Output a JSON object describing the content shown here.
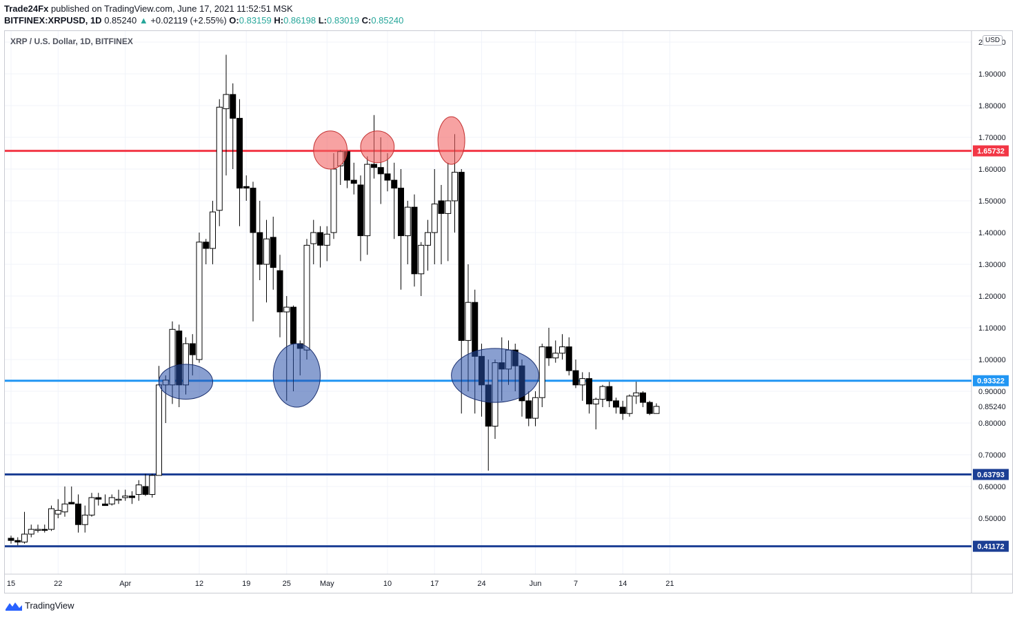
{
  "header": {
    "publisher": "Trade24Fx",
    "published_text": "published on TradingView.com, June 17, 2021 11:52:51 MSK",
    "symbol": "BITFINEX:XRPUSD, 1D",
    "price": "0.85240",
    "change": "+0.02119 (+2.55%)",
    "open_label": "O:",
    "open": "0.83159",
    "high_label": "H:",
    "high": "0.86198",
    "low_label": "L:",
    "low": "0.83019",
    "close_label": "C:",
    "close": "0.85240"
  },
  "chart_title": "XRP / U.S. Dollar, 1D, BITFINEX",
  "currency_button": "USD",
  "footer": {
    "brand": "TradingView"
  },
  "colors": {
    "bull_body": "#ffffff",
    "bear_body": "#000000",
    "wick": "#000000",
    "grid": "#f0f3fa",
    "red_line": "#f23645",
    "blue_line": "#2962ff"
  },
  "chart_data": {
    "type": "candlestick",
    "title": "XRP / U.S. Dollar, 1D, BITFINEX",
    "ylim": [
      0.35,
      2.03
    ],
    "y_ticks": [
      "0.50000",
      "0.60000",
      "0.70000",
      "0.80000",
      "0.90000",
      "1.00000",
      "1.10000",
      "1.20000",
      "1.30000",
      "1.40000",
      "1.50000",
      "1.60000",
      "1.70000",
      "1.80000",
      "1.90000",
      "2.00000"
    ],
    "y_tick_values": [
      0.5,
      0.6,
      0.7,
      0.8,
      0.9,
      1.0,
      1.1,
      1.2,
      1.3,
      1.4,
      1.5,
      1.6,
      1.7,
      1.8,
      1.9,
      2.0
    ],
    "x_ticks": [
      {
        "label": "15",
        "day": 0
      },
      {
        "label": "22",
        "day": 7
      },
      {
        "label": "Apr",
        "day": 17
      },
      {
        "label": "12",
        "day": 28
      },
      {
        "label": "19",
        "day": 35
      },
      {
        "label": "25",
        "day": 41
      },
      {
        "label": "May",
        "day": 47
      },
      {
        "label": "10",
        "day": 56
      },
      {
        "label": "17",
        "day": 63
      },
      {
        "label": "24",
        "day": 70
      },
      {
        "label": "Jun",
        "day": 78
      },
      {
        "label": "7",
        "day": 84
      },
      {
        "label": "14",
        "day": 91
      },
      {
        "label": "21",
        "day": 98
      }
    ],
    "levels": [
      {
        "price": 1.65732,
        "label": "1.65732",
        "color": "#f23645"
      },
      {
        "price": 0.93322,
        "label": "0.93322",
        "color": "#2196f3"
      },
      {
        "price": 0.63793,
        "label": "0.63793",
        "color": "#1c3f94"
      },
      {
        "price": 0.41172,
        "label": "0.41172",
        "color": "#1c3f94"
      }
    ],
    "last_price": {
      "price": 0.8524,
      "label": "0.85240"
    },
    "highlights": [
      {
        "type": "resistance",
        "day": 47.5,
        "price": 1.66,
        "w_days": 2.5,
        "h_price": 0.12
      },
      {
        "type": "resistance",
        "day": 54.5,
        "price": 1.67,
        "w_days": 2.5,
        "h_price": 0.1
      },
      {
        "type": "resistance",
        "day": 65.5,
        "price": 1.69,
        "w_days": 2.0,
        "h_price": 0.15
      },
      {
        "type": "support",
        "day": 26,
        "price": 0.93,
        "w_days": 4.0,
        "h_price": 0.11
      },
      {
        "type": "support",
        "day": 42.5,
        "price": 0.95,
        "w_days": 3.5,
        "h_price": 0.2
      },
      {
        "type": "support",
        "day": 72,
        "price": 0.95,
        "w_days": 6.5,
        "h_price": 0.17
      }
    ],
    "candles": [
      {
        "d": 0,
        "o": 0.437,
        "h": 0.445,
        "l": 0.42,
        "c": 0.43
      },
      {
        "d": 1,
        "o": 0.43,
        "h": 0.44,
        "l": 0.415,
        "c": 0.425
      },
      {
        "d": 2,
        "o": 0.425,
        "h": 0.52,
        "l": 0.42,
        "c": 0.45
      },
      {
        "d": 3,
        "o": 0.45,
        "h": 0.48,
        "l": 0.44,
        "c": 0.465
      },
      {
        "d": 4,
        "o": 0.465,
        "h": 0.48,
        "l": 0.455,
        "c": 0.465
      },
      {
        "d": 5,
        "o": 0.465,
        "h": 0.48,
        "l": 0.455,
        "c": 0.462
      },
      {
        "d": 6,
        "o": 0.465,
        "h": 0.54,
        "l": 0.46,
        "c": 0.53
      },
      {
        "d": 7,
        "o": 0.513,
        "h": 0.56,
        "l": 0.5,
        "c": 0.525
      },
      {
        "d": 8,
        "o": 0.52,
        "h": 0.6,
        "l": 0.505,
        "c": 0.545
      },
      {
        "d": 9,
        "o": 0.55,
        "h": 0.6,
        "l": 0.545,
        "c": 0.545
      },
      {
        "d": 10,
        "o": 0.545,
        "h": 0.575,
        "l": 0.455,
        "c": 0.48
      },
      {
        "d": 11,
        "o": 0.48,
        "h": 0.54,
        "l": 0.455,
        "c": 0.51
      },
      {
        "d": 12,
        "o": 0.51,
        "h": 0.58,
        "l": 0.505,
        "c": 0.565
      },
      {
        "d": 13,
        "o": 0.565,
        "h": 0.58,
        "l": 0.54,
        "c": 0.56
      },
      {
        "d": 14,
        "o": 0.545,
        "h": 0.575,
        "l": 0.54,
        "c": 0.54
      },
      {
        "d": 15,
        "o": 0.545,
        "h": 0.575,
        "l": 0.54,
        "c": 0.565
      },
      {
        "d": 16,
        "o": 0.56,
        "h": 0.59,
        "l": 0.545,
        "c": 0.56
      },
      {
        "d": 17,
        "o": 0.565,
        "h": 0.59,
        "l": 0.555,
        "c": 0.57
      },
      {
        "d": 18,
        "o": 0.57,
        "h": 0.585,
        "l": 0.545,
        "c": 0.565
      },
      {
        "d": 19,
        "o": 0.575,
        "h": 0.62,
        "l": 0.555,
        "c": 0.605
      },
      {
        "d": 20,
        "o": 0.6,
        "h": 0.64,
        "l": 0.57,
        "c": 0.575
      },
      {
        "d": 21,
        "o": 0.575,
        "h": 0.64,
        "l": 0.565,
        "c": 0.635
      },
      {
        "d": 22,
        "o": 0.635,
        "h": 0.98,
        "l": 0.635,
        "c": 0.92
      },
      {
        "d": 23,
        "o": 0.92,
        "h": 0.95,
        "l": 0.8,
        "c": 0.935
      },
      {
        "d": 24,
        "o": 0.92,
        "h": 1.12,
        "l": 0.86,
        "c": 1.095
      },
      {
        "d": 25,
        "o": 1.09,
        "h": 1.11,
        "l": 0.85,
        "c": 0.92
      },
      {
        "d": 26,
        "o": 0.92,
        "h": 1.07,
        "l": 0.89,
        "c": 1.05
      },
      {
        "d": 27,
        "o": 1.05,
        "h": 1.08,
        "l": 0.95,
        "c": 1.015
      },
      {
        "d": 28,
        "o": 1.0,
        "h": 1.4,
        "l": 0.99,
        "c": 1.37
      },
      {
        "d": 29,
        "o": 1.37,
        "h": 1.38,
        "l": 1.3,
        "c": 1.35
      },
      {
        "d": 30,
        "o": 1.35,
        "h": 1.5,
        "l": 1.3,
        "c": 1.465
      },
      {
        "d": 31,
        "o": 1.47,
        "h": 1.82,
        "l": 1.42,
        "c": 1.795
      },
      {
        "d": 32,
        "o": 1.79,
        "h": 1.96,
        "l": 1.58,
        "c": 1.835
      },
      {
        "d": 33,
        "o": 1.835,
        "h": 1.87,
        "l": 1.6,
        "c": 1.76
      },
      {
        "d": 34,
        "o": 1.76,
        "h": 1.82,
        "l": 1.42,
        "c": 1.54
      },
      {
        "d": 35,
        "o": 1.545,
        "h": 1.58,
        "l": 1.5,
        "c": 1.54
      },
      {
        "d": 36,
        "o": 1.54,
        "h": 1.56,
        "l": 1.12,
        "c": 1.4
      },
      {
        "d": 37,
        "o": 1.4,
        "h": 1.5,
        "l": 1.25,
        "c": 1.3
      },
      {
        "d": 38,
        "o": 1.3,
        "h": 1.44,
        "l": 1.18,
        "c": 1.38
      },
      {
        "d": 39,
        "o": 1.385,
        "h": 1.45,
        "l": 1.22,
        "c": 1.29
      },
      {
        "d": 40,
        "o": 1.28,
        "h": 1.33,
        "l": 1.07,
        "c": 1.15
      },
      {
        "d": 41,
        "o": 1.15,
        "h": 1.2,
        "l": 0.87,
        "c": 1.165
      },
      {
        "d": 42,
        "o": 1.165,
        "h": 1.17,
        "l": 0.9,
        "c": 1.05
      },
      {
        "d": 43,
        "o": 1.05,
        "h": 1.06,
        "l": 0.95,
        "c": 1.035
      },
      {
        "d": 44,
        "o": 1.03,
        "h": 1.38,
        "l": 1.0,
        "c": 1.36
      },
      {
        "d": 45,
        "o": 1.365,
        "h": 1.44,
        "l": 1.3,
        "c": 1.4
      },
      {
        "d": 46,
        "o": 1.4,
        "h": 1.42,
        "l": 1.29,
        "c": 1.36
      },
      {
        "d": 47,
        "o": 1.36,
        "h": 1.42,
        "l": 1.31,
        "c": 1.395
      },
      {
        "d": 48,
        "o": 1.4,
        "h": 1.65,
        "l": 1.38,
        "c": 1.6
      },
      {
        "d": 49,
        "o": 1.61,
        "h": 1.66,
        "l": 1.55,
        "c": 1.655
      },
      {
        "d": 50,
        "o": 1.655,
        "h": 1.66,
        "l": 1.54,
        "c": 1.565
      },
      {
        "d": 51,
        "o": 1.565,
        "h": 1.62,
        "l": 1.52,
        "c": 1.555
      },
      {
        "d": 52,
        "o": 1.55,
        "h": 1.58,
        "l": 1.31,
        "c": 1.39
      },
      {
        "d": 53,
        "o": 1.39,
        "h": 1.64,
        "l": 1.33,
        "c": 1.615
      },
      {
        "d": 54,
        "o": 1.615,
        "h": 1.77,
        "l": 1.57,
        "c": 1.605
      },
      {
        "d": 55,
        "o": 1.605,
        "h": 1.7,
        "l": 1.49,
        "c": 1.585
      },
      {
        "d": 56,
        "o": 1.585,
        "h": 1.65,
        "l": 1.53,
        "c": 1.565
      },
      {
        "d": 57,
        "o": 1.565,
        "h": 1.62,
        "l": 1.38,
        "c": 1.54
      },
      {
        "d": 58,
        "o": 1.54,
        "h": 1.6,
        "l": 1.22,
        "c": 1.39
      },
      {
        "d": 59,
        "o": 1.39,
        "h": 1.5,
        "l": 1.3,
        "c": 1.48
      },
      {
        "d": 60,
        "o": 1.48,
        "h": 1.52,
        "l": 1.23,
        "c": 1.27
      },
      {
        "d": 61,
        "o": 1.27,
        "h": 1.37,
        "l": 1.2,
        "c": 1.36
      },
      {
        "d": 62,
        "o": 1.36,
        "h": 1.44,
        "l": 1.28,
        "c": 1.4
      },
      {
        "d": 63,
        "o": 1.4,
        "h": 1.6,
        "l": 1.3,
        "c": 1.49
      },
      {
        "d": 64,
        "o": 1.5,
        "h": 1.55,
        "l": 1.3,
        "c": 1.46
      },
      {
        "d": 65,
        "o": 1.46,
        "h": 1.62,
        "l": 1.31,
        "c": 1.5
      },
      {
        "d": 66,
        "o": 1.5,
        "h": 1.71,
        "l": 1.4,
        "c": 1.59
      },
      {
        "d": 67,
        "o": 1.59,
        "h": 1.6,
        "l": 0.83,
        "c": 1.06
      },
      {
        "d": 68,
        "o": 1.06,
        "h": 1.3,
        "l": 0.9,
        "c": 1.18
      },
      {
        "d": 69,
        "o": 1.18,
        "h": 1.22,
        "l": 0.83,
        "c": 1.01
      },
      {
        "d": 70,
        "o": 1.01,
        "h": 1.05,
        "l": 0.82,
        "c": 0.92
      },
      {
        "d": 71,
        "o": 0.92,
        "h": 1.0,
        "l": 0.65,
        "c": 0.79
      },
      {
        "d": 72,
        "o": 0.79,
        "h": 1.0,
        "l": 0.75,
        "c": 0.99
      },
      {
        "d": 73,
        "o": 0.99,
        "h": 1.07,
        "l": 0.87,
        "c": 0.97
      },
      {
        "d": 74,
        "o": 0.97,
        "h": 1.06,
        "l": 0.92,
        "c": 1.03
      },
      {
        "d": 75,
        "o": 1.03,
        "h": 1.05,
        "l": 0.9,
        "c": 0.98
      },
      {
        "d": 76,
        "o": 0.98,
        "h": 1.0,
        "l": 0.82,
        "c": 0.87
      },
      {
        "d": 77,
        "o": 0.87,
        "h": 0.9,
        "l": 0.79,
        "c": 0.815
      },
      {
        "d": 78,
        "o": 0.815,
        "h": 0.9,
        "l": 0.79,
        "c": 0.88
      },
      {
        "d": 79,
        "o": 0.88,
        "h": 1.05,
        "l": 0.85,
        "c": 1.04
      },
      {
        "d": 80,
        "o": 1.04,
        "h": 1.1,
        "l": 0.98,
        "c": 1.005
      },
      {
        "d": 81,
        "o": 1.005,
        "h": 1.06,
        "l": 0.99,
        "c": 1.02
      },
      {
        "d": 82,
        "o": 1.02,
        "h": 1.08,
        "l": 1.0,
        "c": 1.04
      },
      {
        "d": 83,
        "o": 1.04,
        "h": 1.07,
        "l": 0.95,
        "c": 0.965
      },
      {
        "d": 84,
        "o": 0.965,
        "h": 1.0,
        "l": 0.91,
        "c": 0.92
      },
      {
        "d": 85,
        "o": 0.92,
        "h": 0.96,
        "l": 0.87,
        "c": 0.94
      },
      {
        "d": 86,
        "o": 0.94,
        "h": 0.96,
        "l": 0.83,
        "c": 0.86
      },
      {
        "d": 87,
        "o": 0.86,
        "h": 0.88,
        "l": 0.78,
        "c": 0.875
      },
      {
        "d": 88,
        "o": 0.875,
        "h": 0.92,
        "l": 0.85,
        "c": 0.915
      },
      {
        "d": 89,
        "o": 0.915,
        "h": 0.93,
        "l": 0.85,
        "c": 0.87
      },
      {
        "d": 90,
        "o": 0.87,
        "h": 0.88,
        "l": 0.83,
        "c": 0.85
      },
      {
        "d": 91,
        "o": 0.85,
        "h": 0.87,
        "l": 0.81,
        "c": 0.83
      },
      {
        "d": 92,
        "o": 0.83,
        "h": 0.89,
        "l": 0.82,
        "c": 0.885
      },
      {
        "d": 93,
        "o": 0.885,
        "h": 0.93,
        "l": 0.86,
        "c": 0.895
      },
      {
        "d": 94,
        "o": 0.895,
        "h": 0.9,
        "l": 0.85,
        "c": 0.865
      },
      {
        "d": 95,
        "o": 0.865,
        "h": 0.87,
        "l": 0.825,
        "c": 0.83
      },
      {
        "d": 96,
        "o": 0.83,
        "h": 0.862,
        "l": 0.83,
        "c": 0.8524
      }
    ]
  }
}
